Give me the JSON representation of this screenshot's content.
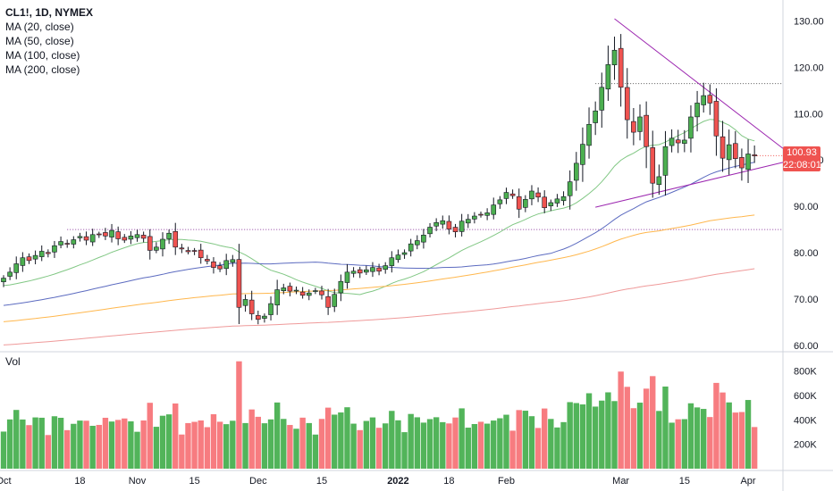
{
  "legend": {
    "symbol": "CL1!, 1D, NYMEX",
    "ma": [
      "MA (20, close)",
      "MA (50, close)",
      "MA (100, close)",
      "MA (200, close)"
    ]
  },
  "volume_label": "Vol",
  "last_price": {
    "value": "100.93",
    "countdown": "22:08:01"
  },
  "colors": {
    "up": "#4caf50",
    "down": "#ef5350",
    "ma20": "#81c784",
    "ma50": "#5c6bc0",
    "ma100": "#ffb74d",
    "ma200": "#ef9a9a",
    "trendline": "#9c27b0"
  },
  "chart_data": [
    {
      "type": "candlestick",
      "title": "CL1!, 1D, NYMEX",
      "price_axis_ticks": [
        60,
        70,
        80,
        90,
        100,
        110,
        120,
        130
      ],
      "price_axis_labels": [
        "60.00",
        "70.00",
        "80.00",
        "90.00",
        "100.00",
        "110.00",
        "120.00",
        "130.00"
      ],
      "ylim": [
        59,
        133
      ],
      "time_axis_labels": [
        "Oct",
        "18",
        "Nov",
        "15",
        "Dec",
        "15",
        "2022",
        "18",
        "Feb",
        "Mar",
        "15",
        "Apr"
      ],
      "time_axis_indices": [
        0,
        12,
        21,
        30,
        40,
        50,
        62,
        70,
        79,
        97,
        107,
        117
      ],
      "closes": [
        74.5,
        75.8,
        77.6,
        78.9,
        78.3,
        79.4,
        80.3,
        79.8,
        81.5,
        82.4,
        81.9,
        82.8,
        83.5,
        82.7,
        83.9,
        84.0,
        83.6,
        84.8,
        83.0,
        82.7,
        83.6,
        83.9,
        83.1,
        80.5,
        81.2,
        82.9,
        84.2,
        81.2,
        80.8,
        80.2,
        80.3,
        78.9,
        78.2,
        76.8,
        76.5,
        78.3,
        78.5,
        68.2,
        69.9,
        66.8,
        65.6,
        66.3,
        69.0,
        72.0,
        72.4,
        71.7,
        71.9,
        70.8,
        71.3,
        71.8,
        70.9,
        68.2,
        71.0,
        73.8,
        75.8,
        76.0,
        75.6,
        76.3,
        76.8,
        76.0,
        77.2,
        78.9,
        79.5,
        80.0,
        81.9,
        82.6,
        83.8,
        85.5,
        86.5,
        86.9,
        85.1,
        84.5,
        86.8,
        87.2,
        87.9,
        88.2,
        88.6,
        90.3,
        91.4,
        93.0,
        92.3,
        89.4,
        91.5,
        93.3,
        92.0,
        89.7,
        90.8,
        91.6,
        92.1,
        95.3,
        99.3,
        103.4,
        107.7,
        110.6,
        115.7,
        120.6,
        123.7,
        115.7,
        108.7,
        106.0,
        109.3,
        102.9,
        95.0,
        96.4,
        102.9,
        104.7,
        103.7,
        104.3,
        109.3,
        112.3,
        113.9,
        112.3,
        105.2,
        100.4,
        103.3,
        100.3,
        98.3,
        101.3,
        100.9
      ],
      "volume_ticks": [
        "200K",
        "400K",
        "600K",
        "800K"
      ],
      "volume_tick_values": [
        200000,
        400000,
        600000,
        800000
      ],
      "resistance_levels": [
        85.0,
        116.5
      ],
      "series": [
        {
          "name": "MA (20, close)"
        },
        {
          "name": "MA (50, close)"
        },
        {
          "name": "MA (100, close)"
        },
        {
          "name": "MA (200, close)"
        }
      ]
    }
  ]
}
